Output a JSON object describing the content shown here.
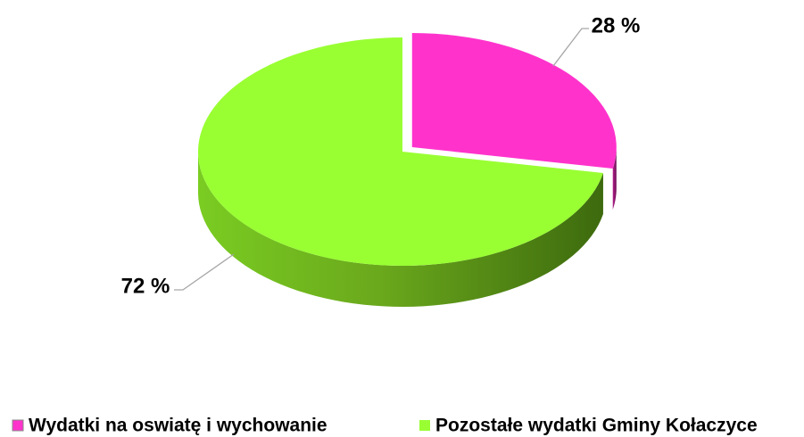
{
  "chart_data": {
    "type": "pie",
    "categories": [
      "Wydatki na oswiatę i wychowanie",
      "Pozostałe wydatki Gminy Kołaczyce"
    ],
    "values": [
      28,
      72
    ],
    "value_labels": [
      "28 %",
      "72 %"
    ],
    "colors": [
      "#ff33cc",
      "#99ff33"
    ],
    "legend": "bottom"
  }
}
